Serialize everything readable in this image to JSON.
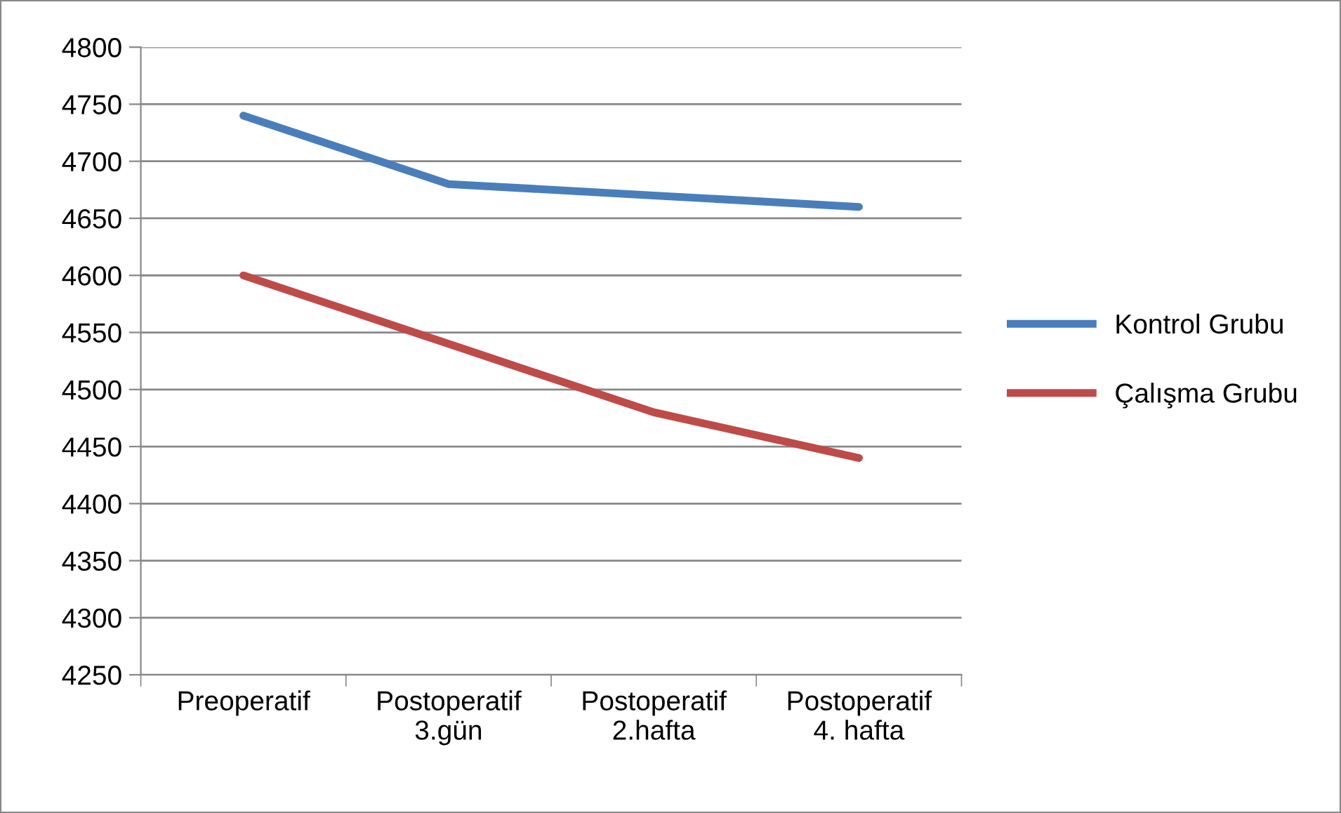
{
  "chart_data": {
    "type": "line",
    "categories": [
      "Preoperatif",
      "Postoperatif\n3.gün",
      "Postoperatif\n2.hafta",
      "Postoperatif\n4. hafta"
    ],
    "series": [
      {
        "name": "Kontrol Grubu",
        "color": "#4a7ebb",
        "values": [
          4740,
          4680,
          4670,
          4660
        ]
      },
      {
        "name": "Çalışma Grubu",
        "color": "#be4b48",
        "values": [
          4600,
          4540,
          4480,
          4440
        ]
      }
    ],
    "ylim": [
      4250,
      4800
    ],
    "yticks": [
      4250,
      4300,
      4350,
      4400,
      4450,
      4500,
      4550,
      4600,
      4650,
      4700,
      4750,
      4800
    ],
    "grid": "y",
    "legend": "right",
    "marker": "none",
    "line_style": "solid"
  }
}
